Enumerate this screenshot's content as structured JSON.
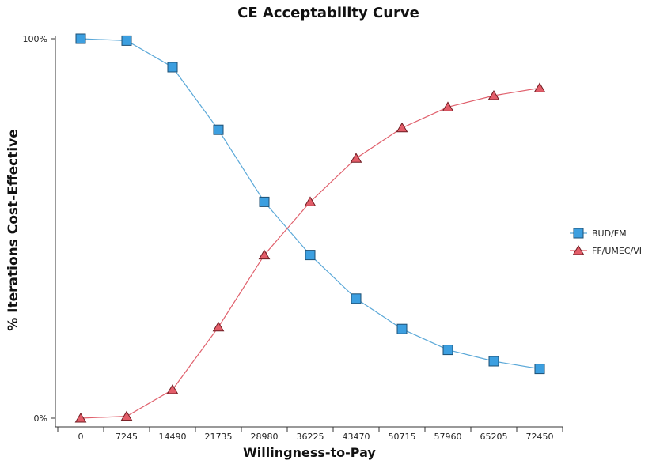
{
  "chart_data": {
    "type": "line",
    "title": "CE Acceptability Curve",
    "xlabel": "Willingness-to-Pay",
    "ylabel": "% Iterations Cost-Effective",
    "categories": [
      "0",
      "7245",
      "14490",
      "21735",
      "28980",
      "36225",
      "43470",
      "50715",
      "57960",
      "65205",
      "72450"
    ],
    "ylim": [
      0,
      100
    ],
    "y_ticks": [
      {
        "value": 100,
        "label": "100%"
      },
      {
        "value": 0,
        "label": "0%"
      }
    ],
    "grid": false,
    "legend_position": "right",
    "series": [
      {
        "name": "BUD/FM",
        "marker": "square",
        "line_color": "#5aa8d8",
        "marker_fill": "#3c9fe0",
        "marker_stroke": "#1d4f73",
        "values": [
          100,
          99.5,
          92.5,
          76,
          57,
          43,
          31.5,
          23.5,
          18,
          15,
          13
        ]
      },
      {
        "name": "FF/UMEC/VI",
        "marker": "triangle",
        "line_color": "#e0606c",
        "marker_fill": "#e35d69",
        "marker_stroke": "#6e1c22",
        "values": [
          0,
          0.5,
          7.5,
          24,
          43,
          57,
          68.5,
          76.5,
          82,
          85,
          87
        ]
      }
    ]
  }
}
